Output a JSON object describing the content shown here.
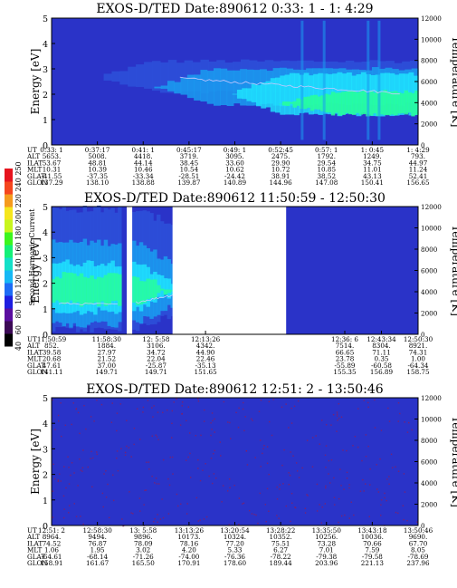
{
  "colors": {
    "background": "#2a33c8",
    "low": "#2c4fd8",
    "mid": "#1a9cf0",
    "high": "#1fe6ff",
    "peak": "#27ff9a",
    "contour": "#c8c8ff"
  },
  "chart_data": [
    {
      "type": "heatmap",
      "title": "EXOS-D/TED   Date:890612   0:33: 1 - 1: 4:29",
      "ylabel": "Energy [eV]",
      "y2label": "Temperature [K]",
      "ylim": [
        0,
        5
      ],
      "y2lim": [
        0,
        12000
      ],
      "yticks": [
        "0",
        "1",
        "2",
        "3",
        "4",
        "5"
      ],
      "y2ticks": [
        "0",
        "2000",
        "4000",
        "6000",
        "8000",
        "10000",
        "12000"
      ],
      "gaps": [],
      "table": {
        "row_labels": [
          "UT",
          "ALT",
          "ILAT",
          "MLT",
          "GLAT",
          "GLON"
        ],
        "columns": [
          [
            "0:33: 1",
            "5653.",
            "53.67",
            "10.31",
            "-41.55",
            "137.29"
          ],
          [
            "0:37:17",
            "5008.",
            "48.81",
            "10.39",
            "-37.35",
            "138.10"
          ],
          [
            "0:41: 1",
            "4418.",
            "44.14",
            "10.46",
            "-33.34",
            "138.88"
          ],
          [
            "0:45:17",
            "3719.",
            "38.45",
            "10.54",
            "-28.51",
            "139.87"
          ],
          [
            "0:49: 1",
            "3095.",
            "33.60",
            "10.62",
            "-24.42",
            "140.89"
          ],
          [
            "0:52:45",
            "2475.",
            "29.90",
            "10.72",
            "38.91",
            "144.96"
          ],
          [
            "0:57: 1",
            "1792.",
            "29.54",
            "10.85",
            "38.52",
            "147.08"
          ],
          [
            "1: 0:45",
            "1249.",
            "34.75",
            "11.01",
            "43.13",
            "150.41"
          ],
          [
            "1: 4:29",
            "793.",
            "44.97",
            "11.24",
            "52.41",
            "156.65"
          ]
        ]
      }
    },
    {
      "type": "heatmap",
      "title": "EXOS-D/TED   Date:890612   11:50:59 - 12:50:30",
      "ylabel": "Energy [eV]",
      "y2label": "Temperature [K]",
      "ylim": [
        0,
        5
      ],
      "y2lim": [
        0,
        12000
      ],
      "yticks": [
        "0",
        "1",
        "2",
        "3",
        "4",
        "5"
      ],
      "y2ticks": [
        "0",
        "2000",
        "4000",
        "6000",
        "8000",
        "10000",
        "12000"
      ],
      "gaps": [
        [
          0.33,
          0.64
        ]
      ],
      "table": {
        "row_labels": [
          "UT",
          "ALT",
          "ILAT",
          "MLT",
          "GLAT",
          "GLON"
        ],
        "columns": [
          [
            "11:50:59",
            "852.",
            "39.58",
            "20.68",
            "47.61",
            "141.11"
          ],
          [
            "11:58:30",
            "1884.",
            "27.97",
            "21.52",
            "37.00",
            "149.71"
          ],
          [
            "12: 5:58",
            "3106.",
            "34.72",
            "22.04",
            "-25.87",
            "149.71"
          ],
          [
            "12:13:26",
            "4342.",
            "44.90",
            "22.46",
            "-35.13",
            "151.65"
          ],
          [
            "12:36: 6",
            "7514.",
            "66.65",
            "23.78",
            "-55.89",
            "155.35"
          ],
          [
            "12:43:34",
            "8304.",
            "71.11",
            "0.35",
            "-60.58",
            "156.89"
          ],
          [
            "12:50:30",
            "8921.",
            "74.31",
            "1.00",
            "-64.34",
            "158.75"
          ]
        ]
      }
    },
    {
      "type": "heatmap",
      "title": "EXOS-D/TED   Date:890612   12:51: 2 - 13:50:46",
      "ylabel": "Energy [eV]",
      "y2label": "Temperature [K]",
      "ylim": [
        0,
        5
      ],
      "y2lim": [
        0,
        12000
      ],
      "yticks": [
        "0",
        "1",
        "2",
        "3",
        "4",
        "5"
      ],
      "y2ticks": [
        "0",
        "2000",
        "4000",
        "6000",
        "8000",
        "10000",
        "12000"
      ],
      "gaps": [],
      "table": {
        "row_labels": [
          "UT",
          "ALT",
          "ILAT",
          "MLT",
          "GLAT",
          "GLON"
        ],
        "columns": [
          [
            "12:51: 2",
            "8964.",
            "74.52",
            "1.06",
            "-64.61",
            "158.91"
          ],
          [
            "12:58:30",
            "9494.",
            "76.87",
            "1.95",
            "-68.14",
            "161.67"
          ],
          [
            "13: 5:58",
            "9896.",
            "78.09",
            "3.02",
            "-71.26",
            "165.50"
          ],
          [
            "13:13:26",
            "10173.",
            "78.16",
            "4.20",
            "-74.00",
            "170.91"
          ],
          [
            "13:20:54",
            "10324.",
            "77.20",
            "5.33",
            "-76.36",
            "178.60"
          ],
          [
            "13:28:22",
            "10352.",
            "75.51",
            "6.27",
            "-78.22",
            "189.44"
          ],
          [
            "13:35:50",
            "10256.",
            "73.28",
            "7.01",
            "-79.38",
            "203.96"
          ],
          [
            "13:43:18",
            "10036.",
            "70.66",
            "7.59",
            "-79.58",
            "221.13"
          ],
          [
            "13:50:46",
            "9690.",
            "67.70",
            "8.05",
            "-78.69",
            "237.96"
          ]
        ]
      }
    }
  ],
  "colorbar": {
    "label": "Second Harmonic Current",
    "ticks": [
      "40",
      "60",
      "80",
      "100",
      "120",
      "140",
      "160",
      "180",
      "200",
      "220",
      "240",
      "250"
    ]
  }
}
